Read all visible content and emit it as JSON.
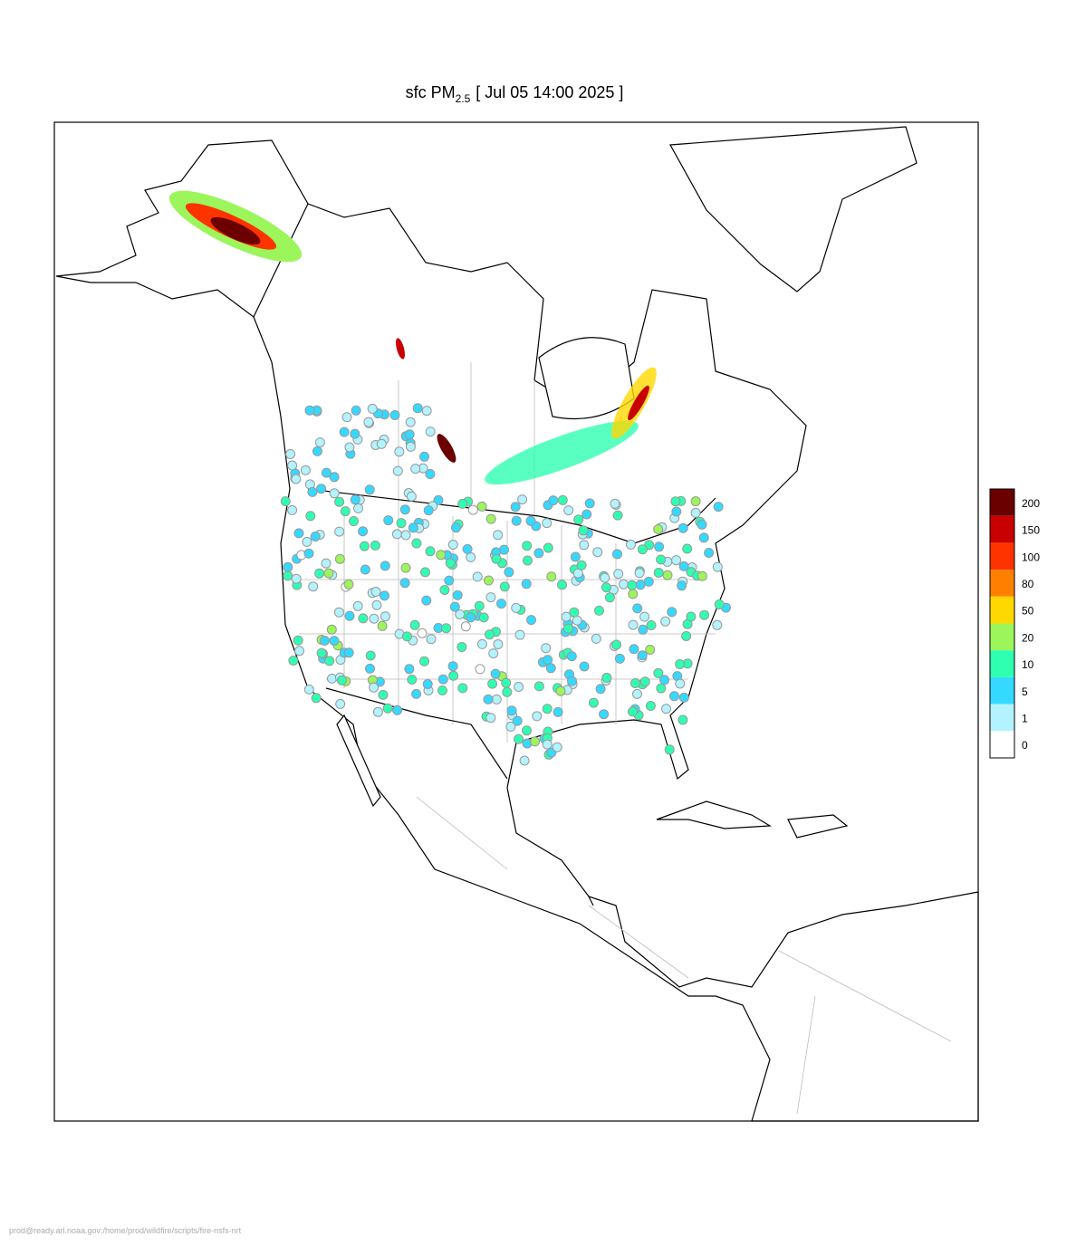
{
  "title": {
    "prefix": "sfc PM",
    "subscript": "2.5",
    "suffix": "[ Jul 05 14:00 2025 ]"
  },
  "legend": {
    "labels": [
      "200",
      "150",
      "100",
      "80",
      "50",
      "20",
      "10",
      "5",
      "1",
      "0"
    ],
    "colors": [
      "#6b0000",
      "#c80000",
      "#ff3300",
      "#ff8000",
      "#ffd800",
      "#9cf55a",
      "#2effb0",
      "#35d9ff",
      "#b3f3ff",
      "#ffffff"
    ]
  },
  "footer": "prod@ready.arl.noaa.gov:/home/prod/wildfire/scripts/fire-nsfs-nrt"
}
